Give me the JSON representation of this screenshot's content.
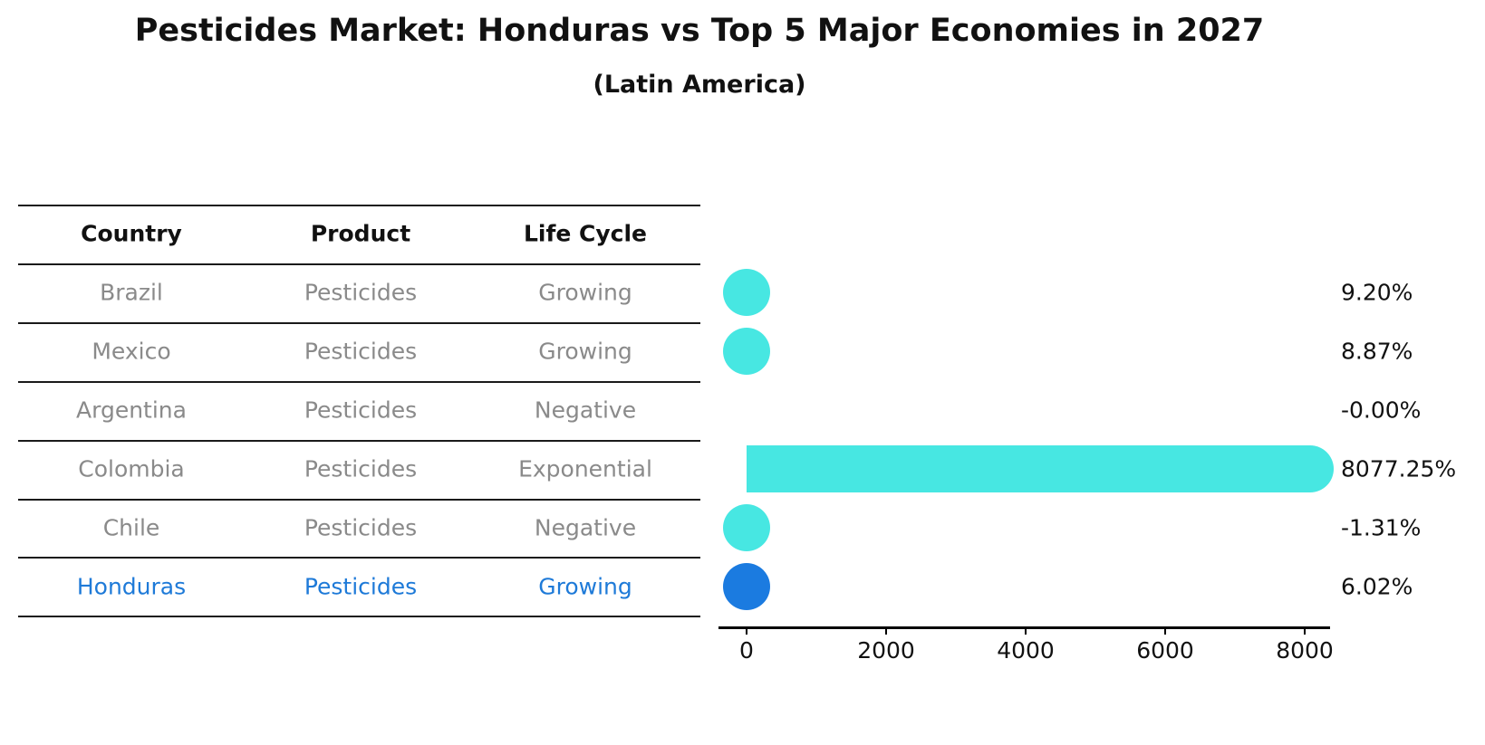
{
  "title": "Pesticides Market: Honduras vs Top 5 Major Economies in 2027",
  "subtitle": "(Latin America)",
  "table": {
    "headers": [
      "Country",
      "Product",
      "Life Cycle"
    ],
    "rows": [
      {
        "country": "Brazil",
        "product": "Pesticides",
        "life_cycle": "Growing",
        "highlight": false
      },
      {
        "country": "Mexico",
        "product": "Pesticides",
        "life_cycle": "Growing",
        "highlight": false
      },
      {
        "country": "Argentina",
        "product": "Pesticides",
        "life_cycle": "Negative",
        "highlight": false
      },
      {
        "country": "Colombia",
        "product": "Pesticides",
        "life_cycle": "Exponential",
        "highlight": false
      },
      {
        "country": "Chile",
        "product": "Pesticides",
        "life_cycle": "Negative",
        "highlight": false
      },
      {
        "country": "Honduras",
        "product": "Pesticides",
        "life_cycle": "Growing",
        "highlight": true
      }
    ]
  },
  "chart_data": {
    "type": "bar",
    "orientation": "horizontal",
    "categories": [
      "Brazil",
      "Mexico",
      "Argentina",
      "Colombia",
      "Chile",
      "Honduras"
    ],
    "values": [
      9.2,
      8.87,
      -0.0,
      8077.25,
      -1.31,
      6.02
    ],
    "value_labels": [
      "9.20%",
      "8.87%",
      "-0.00%",
      "8077.25%",
      "-1.31%",
      "6.02%"
    ],
    "show_marker": [
      true,
      true,
      false,
      true,
      true,
      true
    ],
    "xticks": [
      0,
      2000,
      4000,
      6000,
      8000
    ],
    "xlim": [
      -400,
      8450
    ],
    "xlabel": "",
    "ylabel": "",
    "grid": false,
    "legend": "none",
    "bar_color": "#47e7e2",
    "highlight_color": "#1b7be0",
    "highlight_index": 5
  },
  "colors": {
    "text_gray": "#8a8a8a",
    "text_black": "#111111",
    "highlight_blue": "#1e7ad8",
    "line_black": "#1a1a1a"
  }
}
